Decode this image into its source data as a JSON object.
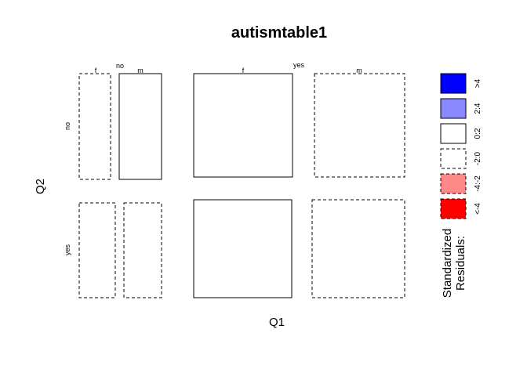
{
  "chart_data": {
    "type": "mosaic",
    "title": "autismtable1",
    "xlabel": "Q1",
    "ylabel": "Q2",
    "outer_levels": {
      "name": "Q1",
      "values": [
        "no",
        "yes"
      ],
      "inner_name": "sex",
      "inner_values": [
        "f",
        "m"
      ]
    },
    "row_levels": [
      "no",
      "yes"
    ],
    "cells": [
      {
        "q1": "no",
        "sex": "f",
        "q2": "no",
        "residual_class": "-2:0"
      },
      {
        "q1": "no",
        "sex": "m",
        "q2": "no",
        "residual_class": "0:2"
      },
      {
        "q1": "yes",
        "sex": "f",
        "q2": "no",
        "residual_class": "0:2"
      },
      {
        "q1": "yes",
        "sex": "m",
        "q2": "no",
        "residual_class": "-2:0"
      },
      {
        "q1": "no",
        "sex": "f",
        "q2": "yes",
        "residual_class": "-2:0"
      },
      {
        "q1": "no",
        "sex": "m",
        "q2": "yes",
        "residual_class": "-2:0"
      },
      {
        "q1": "yes",
        "sex": "f",
        "q2": "yes",
        "residual_class": "0:2"
      },
      {
        "q1": "yes",
        "sex": "m",
        "q2": "yes",
        "residual_class": "-2:0"
      }
    ],
    "legend": {
      "title_line1": "Standardized",
      "title_line2": "Residuals:",
      "placement": "right",
      "entries": [
        {
          "label": ">4",
          "color": "#0000ff",
          "dashed": false
        },
        {
          "label": "2:4",
          "color": "#8888ff",
          "dashed": false
        },
        {
          "label": "0:2",
          "color": "#ffffff",
          "dashed": false
        },
        {
          "label": "-2:0",
          "color": "#ffffff",
          "dashed": true
        },
        {
          "label": "-4:-2",
          "color": "#ff8888",
          "dashed": true
        },
        {
          "label": "<-4",
          "color": "#ff0000",
          "dashed": true
        }
      ]
    }
  }
}
